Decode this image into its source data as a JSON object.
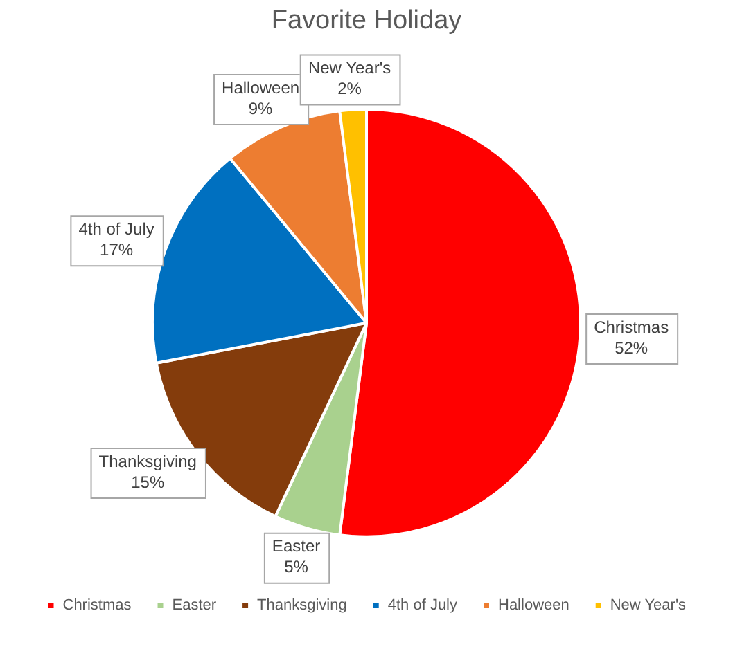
{
  "chart_data": {
    "type": "pie",
    "title": "Favorite Holiday",
    "categories": [
      "Christmas",
      "Easter",
      "Thanksgiving",
      "4th of July",
      "Halloween",
      "New Year's"
    ],
    "values": [
      52,
      5,
      15,
      17,
      9,
      2
    ],
    "colors": [
      "#ff0000",
      "#a9d18e",
      "#843c0c",
      "#0070c0",
      "#ed7d31",
      "#ffc000"
    ],
    "value_labels": [
      "52%",
      "5%",
      "15%",
      "17%",
      "9%",
      "2%"
    ],
    "legend": "bottom"
  }
}
